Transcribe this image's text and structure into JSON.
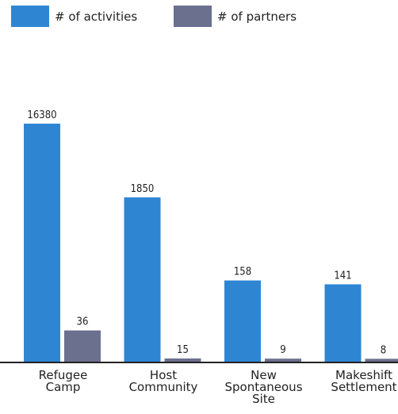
{
  "chart_data": {
    "type": "bar",
    "title": "",
    "xlabel": "",
    "ylabel": "",
    "categories": [
      [
        "Refugee",
        "Camp"
      ],
      [
        "Host",
        "Community"
      ],
      [
        "New",
        "Spontaneous",
        "Site"
      ],
      [
        "Makeshift",
        "Settlement"
      ]
    ],
    "series": [
      {
        "name": "# of activities",
        "color": "#2e86d3",
        "values": [
          16380,
          1850,
          158,
          141
        ]
      },
      {
        "name": "# of partners",
        "color": "#6b708f",
        "values": [
          36,
          15,
          9,
          8
        ]
      }
    ],
    "scale": "nonlinear (values shown by data labels)",
    "grid": false,
    "legend_position": "top-left"
  }
}
